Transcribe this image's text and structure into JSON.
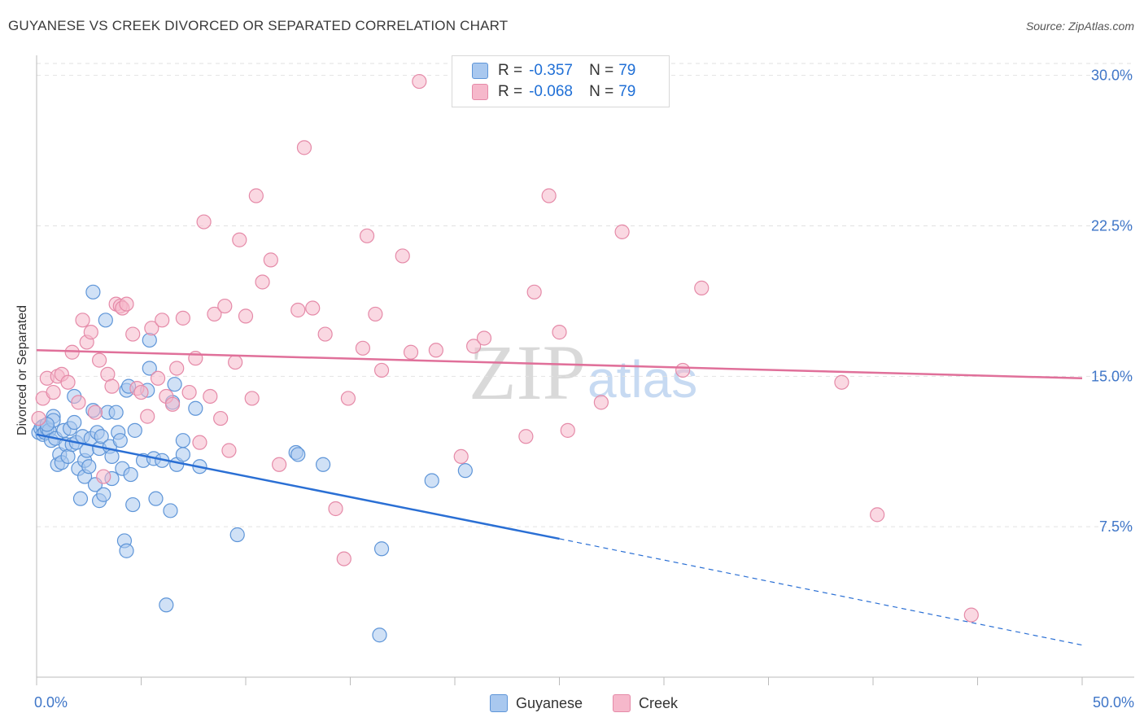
{
  "header": {
    "title": "GUYANESE VS CREEK DIVORCED OR SEPARATED CORRELATION CHART",
    "source": "Source: ZipAtlas.com"
  },
  "watermark": {
    "zip": "ZIP",
    "atlas": "atlas"
  },
  "legend": {
    "rows": [
      {
        "r_label": "R =",
        "r_value": "-0.357",
        "n_label": "N =",
        "n_value": "79"
      },
      {
        "r_label": "R =",
        "r_value": "-0.068",
        "n_label": "N =",
        "n_value": "79"
      }
    ]
  },
  "bottom_legend": {
    "guyanese": "Guyanese",
    "creek": "Creek"
  },
  "colors": {
    "guyanese_fill": "#a9c8ef",
    "guyanese_stroke": "#5e95d8",
    "guyanese_line": "#2a6fd4",
    "creek_fill": "#f6b8cb",
    "creek_stroke": "#e58aa8",
    "creek_line": "#e0709a",
    "axis_text": "#3f76c8",
    "grid": "#e2e2e2"
  },
  "chart_data": {
    "type": "scatter",
    "title": "GUYANESE VS CREEK DIVORCED OR SEPARATED CORRELATION CHART",
    "xlabel": "",
    "ylabel": "Divorced or Separated",
    "xlim": [
      0,
      50
    ],
    "ylim": [
      0,
      31
    ],
    "x_tick_labels": [
      "0.0%",
      "50.0%"
    ],
    "y_ticks": [
      7.5,
      15.0,
      22.5,
      30.0
    ],
    "y_tick_labels": [
      "7.5%",
      "15.0%",
      "22.5%",
      "30.0%"
    ],
    "grid": true,
    "legend_position": "top-center",
    "series": [
      {
        "name": "Guyanese",
        "r": -0.357,
        "n": 79,
        "trend": {
          "x0": 0,
          "y0": 12.1,
          "x1": 25,
          "y1": 6.9,
          "dash_x1": 50,
          "dash_y1": 1.6
        },
        "points": [
          [
            0.1,
            12.2
          ],
          [
            0.2,
            12.4
          ],
          [
            0.3,
            12.5
          ],
          [
            0.3,
            12.1
          ],
          [
            0.4,
            12.2
          ],
          [
            0.5,
            12.4
          ],
          [
            0.6,
            12.3
          ],
          [
            0.7,
            11.8
          ],
          [
            0.8,
            13.0
          ],
          [
            0.8,
            12.8
          ],
          [
            0.9,
            11.9
          ],
          [
            1.0,
            10.6
          ],
          [
            1.1,
            11.1
          ],
          [
            1.2,
            10.7
          ],
          [
            1.3,
            12.3
          ],
          [
            1.4,
            11.6
          ],
          [
            1.5,
            11.0
          ],
          [
            1.6,
            12.4
          ],
          [
            1.7,
            11.6
          ],
          [
            1.8,
            12.7
          ],
          [
            1.8,
            14.0
          ],
          [
            1.9,
            11.7
          ],
          [
            2.0,
            10.4
          ],
          [
            2.1,
            8.9
          ],
          [
            2.2,
            12.0
          ],
          [
            2.3,
            10.0
          ],
          [
            2.3,
            10.8
          ],
          [
            2.4,
            11.3
          ],
          [
            2.5,
            10.5
          ],
          [
            2.6,
            11.9
          ],
          [
            2.7,
            13.3
          ],
          [
            2.7,
            19.2
          ],
          [
            2.8,
            9.6
          ],
          [
            2.9,
            12.2
          ],
          [
            3.0,
            11.4
          ],
          [
            3.0,
            8.8
          ],
          [
            3.1,
            12.0
          ],
          [
            3.2,
            9.1
          ],
          [
            3.3,
            17.8
          ],
          [
            3.4,
            13.2
          ],
          [
            3.5,
            11.5
          ],
          [
            3.6,
            11.0
          ],
          [
            3.6,
            9.9
          ],
          [
            3.8,
            13.2
          ],
          [
            3.9,
            12.2
          ],
          [
            4.0,
            11.8
          ],
          [
            4.1,
            10.4
          ],
          [
            4.2,
            6.8
          ],
          [
            4.3,
            6.3
          ],
          [
            4.3,
            14.3
          ],
          [
            4.4,
            14.5
          ],
          [
            4.5,
            10.1
          ],
          [
            4.6,
            8.6
          ],
          [
            4.7,
            12.3
          ],
          [
            5.1,
            10.8
          ],
          [
            5.3,
            14.3
          ],
          [
            5.4,
            15.4
          ],
          [
            5.4,
            16.8
          ],
          [
            5.6,
            10.9
          ],
          [
            5.7,
            8.9
          ],
          [
            6.0,
            10.8
          ],
          [
            6.2,
            3.6
          ],
          [
            6.4,
            8.3
          ],
          [
            6.5,
            13.7
          ],
          [
            6.6,
            14.6
          ],
          [
            6.7,
            10.6
          ],
          [
            7.0,
            11.1
          ],
          [
            7.0,
            11.8
          ],
          [
            7.6,
            13.4
          ],
          [
            7.8,
            10.5
          ],
          [
            9.6,
            7.1
          ],
          [
            12.4,
            11.2
          ],
          [
            12.5,
            11.1
          ],
          [
            13.7,
            10.6
          ],
          [
            16.4,
            2.1
          ],
          [
            16.5,
            6.4
          ],
          [
            18.9,
            9.8
          ],
          [
            20.5,
            10.3
          ],
          [
            0.5,
            12.6
          ]
        ]
      },
      {
        "name": "Creek",
        "r": -0.068,
        "n": 79,
        "trend": {
          "x0": 0,
          "y0": 16.3,
          "x1": 50,
          "y1": 14.9
        },
        "points": [
          [
            0.1,
            12.9
          ],
          [
            0.3,
            13.9
          ],
          [
            0.5,
            14.9
          ],
          [
            0.8,
            14.2
          ],
          [
            1.0,
            15.0
          ],
          [
            1.2,
            15.1
          ],
          [
            1.5,
            14.7
          ],
          [
            1.7,
            16.2
          ],
          [
            2.0,
            13.7
          ],
          [
            2.2,
            17.8
          ],
          [
            2.4,
            16.7
          ],
          [
            2.6,
            17.2
          ],
          [
            2.8,
            13.2
          ],
          [
            3.0,
            15.8
          ],
          [
            3.2,
            10.0
          ],
          [
            3.4,
            15.1
          ],
          [
            3.6,
            14.5
          ],
          [
            3.8,
            18.6
          ],
          [
            4.0,
            18.5
          ],
          [
            4.1,
            18.4
          ],
          [
            4.3,
            18.6
          ],
          [
            4.6,
            17.1
          ],
          [
            4.8,
            14.4
          ],
          [
            5.0,
            14.2
          ],
          [
            5.3,
            13.0
          ],
          [
            5.5,
            17.4
          ],
          [
            5.8,
            14.9
          ],
          [
            6.0,
            17.8
          ],
          [
            6.2,
            14.0
          ],
          [
            6.5,
            13.6
          ],
          [
            6.7,
            15.4
          ],
          [
            7.0,
            17.9
          ],
          [
            7.3,
            14.2
          ],
          [
            7.6,
            15.9
          ],
          [
            7.8,
            11.7
          ],
          [
            8.0,
            22.7
          ],
          [
            8.3,
            14.0
          ],
          [
            8.5,
            18.1
          ],
          [
            8.8,
            12.9
          ],
          [
            9.0,
            18.5
          ],
          [
            9.2,
            11.3
          ],
          [
            9.5,
            15.7
          ],
          [
            9.7,
            21.8
          ],
          [
            10.0,
            18.0
          ],
          [
            10.3,
            13.9
          ],
          [
            10.5,
            24.0
          ],
          [
            10.8,
            19.7
          ],
          [
            11.2,
            20.8
          ],
          [
            11.6,
            10.6
          ],
          [
            12.5,
            18.3
          ],
          [
            12.8,
            26.4
          ],
          [
            13.2,
            18.4
          ],
          [
            13.8,
            17.1
          ],
          [
            14.3,
            8.4
          ],
          [
            14.7,
            5.9
          ],
          [
            14.9,
            13.9
          ],
          [
            15.6,
            16.4
          ],
          [
            15.8,
            22.0
          ],
          [
            16.2,
            18.1
          ],
          [
            16.5,
            15.3
          ],
          [
            17.5,
            21.0
          ],
          [
            17.9,
            16.2
          ],
          [
            18.3,
            29.7
          ],
          [
            19.1,
            16.3
          ],
          [
            20.3,
            11.0
          ],
          [
            20.9,
            16.5
          ],
          [
            21.4,
            16.9
          ],
          [
            23.4,
            12.0
          ],
          [
            23.8,
            19.2
          ],
          [
            24.5,
            24.0
          ],
          [
            25.0,
            17.2
          ],
          [
            25.4,
            12.3
          ],
          [
            27.0,
            13.7
          ],
          [
            28.0,
            22.2
          ],
          [
            30.9,
            15.3
          ],
          [
            31.8,
            19.4
          ],
          [
            38.5,
            14.7
          ],
          [
            40.2,
            8.1
          ],
          [
            44.7,
            3.1
          ]
        ]
      }
    ]
  }
}
